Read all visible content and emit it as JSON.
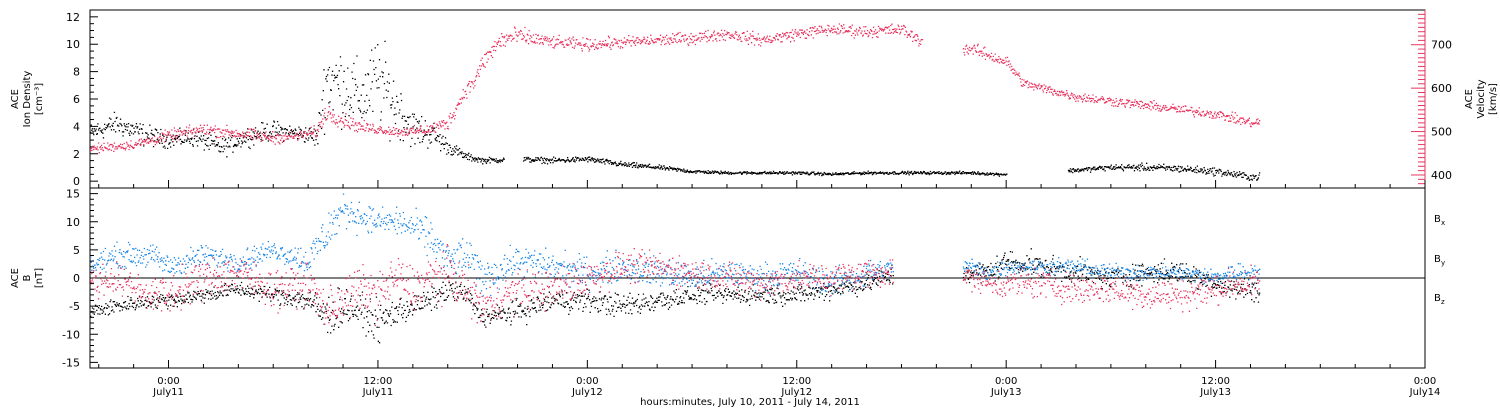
{
  "colors": {
    "black": "#000000",
    "pink": "#e8355f",
    "blue": "#1a86e6"
  },
  "xaxis": {
    "range_hours": [
      -4.5,
      72
    ],
    "ticks": [
      {
        "hour": 0,
        "time": "0:00",
        "date": "July11"
      },
      {
        "hour": 12,
        "time": "12:00",
        "date": "July11"
      },
      {
        "hour": 24,
        "time": "0:00",
        "date": "July12"
      },
      {
        "hour": 36,
        "time": "12:00",
        "date": "July12"
      },
      {
        "hour": 48,
        "time": "0:00",
        "date": "July13"
      },
      {
        "hour": 60,
        "time": "12:00",
        "date": "July13"
      },
      {
        "hour": 72,
        "time": "0:00",
        "date": "July14"
      }
    ],
    "title": "hours:minutes, July 10, 2011 - July 14, 2011"
  },
  "chart_data": [
    {
      "type": "scatter",
      "panel": "top",
      "ylabel_left": [
        "ACE",
        "Ion Density",
        "[cm⁻³]"
      ],
      "ylabel_right": [
        "ACE",
        "Velocity",
        "[km/s]"
      ],
      "ylim_left": [
        -0.5,
        12.5
      ],
      "ylim_right": [
        370,
        780
      ],
      "yticks_left": [
        0,
        2,
        4,
        6,
        8,
        10,
        12
      ],
      "yticks_right": [
        400,
        500,
        600,
        700
      ],
      "series": [
        {
          "axis": "left",
          "color_key": "black",
          "x": [
            -4.5,
            -3,
            -1.5,
            0,
            1.5,
            3,
            4.5,
            6,
            7.5,
            8.5,
            9,
            10,
            11,
            12,
            13,
            14,
            15,
            16,
            17,
            18,
            20,
            22,
            24,
            26,
            28,
            30,
            32,
            34,
            36,
            38,
            40,
            42,
            44,
            46,
            47.5,
            48,
            50,
            52,
            54,
            56,
            58,
            60,
            61,
            62
          ],
          "y": [
            3.5,
            4.2,
            3.4,
            3.0,
            3.2,
            2.4,
            3.3,
            3.7,
            3.5,
            3.2,
            7.5,
            7.0,
            6.0,
            7.5,
            5.5,
            3.8,
            3.5,
            2.5,
            1.8,
            1.5,
            1.6,
            1.5,
            1.6,
            1.2,
            1.0,
            0.7,
            0.6,
            0.6,
            0.6,
            0.5,
            0.6,
            0.6,
            0.6,
            0.6,
            0.5,
            0.5,
            0.6,
            0.8,
            1.0,
            1.0,
            0.9,
            0.7,
            0.5,
            0.3
          ],
          "jitter": [
            0.5,
            0.6,
            0.6,
            0.4,
            0.5,
            0.5,
            0.5,
            0.5,
            0.4,
            0.6,
            2.2,
            2.0,
            1.8,
            2.4,
            1.6,
            1.0,
            0.8,
            0.4,
            0.2,
            0.15,
            0.15,
            0.15,
            0.15,
            0.15,
            0.12,
            0.1,
            0.08,
            0.08,
            0.08,
            0.08,
            0.08,
            0.08,
            0.08,
            0.08,
            0.08,
            0.08,
            0.1,
            0.12,
            0.15,
            0.2,
            0.2,
            0.2,
            0.2,
            0.2
          ],
          "gaps": [
            [
              19.2,
              20.3
            ],
            [
              48.0,
              51.5
            ],
            [
              62.5,
              73
            ]
          ]
        },
        {
          "axis": "right",
          "color_key": "pink",
          "x": [
            -4.5,
            -2,
            0,
            2,
            4,
            6,
            7.5,
            8.5,
            9,
            10,
            11,
            12,
            13,
            14,
            15,
            16,
            17,
            17.5,
            18,
            19,
            20,
            22,
            24,
            26,
            28,
            30,
            32,
            34,
            36,
            38,
            40,
            42,
            43,
            45,
            46,
            47,
            48,
            49,
            50,
            52,
            54,
            56,
            58,
            60,
            61,
            62
          ],
          "y": [
            460,
            470,
            490,
            505,
            495,
            485,
            490,
            500,
            545,
            525,
            510,
            505,
            500,
            500,
            505,
            520,
            595,
            615,
            660,
            710,
            720,
            705,
            700,
            705,
            710,
            715,
            725,
            710,
            725,
            735,
            730,
            735,
            710,
            690,
            690,
            675,
            660,
            610,
            600,
            580,
            570,
            560,
            550,
            540,
            530,
            520
          ],
          "jitter": [
            8,
            8,
            10,
            10,
            10,
            10,
            8,
            10,
            15,
            12,
            10,
            8,
            8,
            8,
            10,
            12,
            12,
            15,
            15,
            18,
            15,
            10,
            10,
            10,
            10,
            10,
            10,
            10,
            10,
            10,
            10,
            10,
            10,
            10,
            10,
            10,
            10,
            8,
            8,
            8,
            8,
            8,
            8,
            8,
            8,
            8
          ],
          "gaps": [
            [
              43.2,
              45.5
            ],
            [
              62.5,
              73
            ]
          ]
        }
      ]
    },
    {
      "type": "scatter",
      "panel": "bottom",
      "ylabel_left": [
        "ACE",
        "B",
        "[nT]"
      ],
      "ylim": [
        -16,
        16
      ],
      "yticks": [
        -15,
        -10,
        -5,
        0,
        5,
        10,
        15
      ],
      "legend": [
        {
          "label": "B",
          "sub": "x",
          "color_key": "black"
        },
        {
          "label": "B",
          "sub": "y",
          "color_key": "blue"
        },
        {
          "label": "B",
          "sub": "z",
          "color_key": "pink"
        }
      ],
      "series": [
        {
          "name": "Bx",
          "color_key": "black",
          "x": [
            -4.5,
            -3,
            -1,
            0,
            2,
            4,
            6,
            8,
            9,
            10,
            11,
            12,
            13,
            14,
            15,
            16,
            17,
            18,
            20,
            22,
            24,
            26,
            28,
            30,
            32,
            34,
            36,
            38,
            40,
            42,
            44,
            46,
            47,
            48,
            50,
            52,
            54,
            56,
            58,
            60,
            61,
            62
          ],
          "y": [
            -6,
            -5,
            -4,
            -4,
            -3,
            -2,
            -3,
            -4,
            -7,
            -5,
            -6,
            -8,
            -6,
            -5,
            -4,
            -2,
            -3,
            -7,
            -6,
            -4,
            -4,
            -5,
            -4,
            -3,
            -3,
            -3,
            -3,
            -2,
            -1,
            1,
            1,
            1,
            1,
            3,
            2,
            1,
            0,
            1,
            1,
            -1,
            -2,
            -2
          ],
          "jitter": [
            1,
            1,
            1,
            1,
            1,
            1,
            1,
            1.5,
            3,
            2.5,
            2,
            2.5,
            2,
            1.5,
            1.5,
            1.5,
            1.5,
            1.2,
            1.5,
            1.5,
            1.5,
            1.5,
            1.5,
            1.2,
            1.2,
            1.2,
            1.2,
            1.2,
            1.2,
            1.5,
            1.5,
            1.5,
            1.5,
            1.5,
            1.5,
            1.5,
            1.5,
            1.5,
            1.5,
            1.5,
            1.5,
            1.5
          ],
          "gaps": [
            [
              41.5,
              45.5
            ],
            [
              62.5,
              73
            ]
          ]
        },
        {
          "name": "By",
          "color_key": "blue",
          "x": [
            -4.5,
            -3,
            -1,
            0,
            2,
            4,
            6,
            8,
            9,
            10,
            11,
            12,
            13,
            14,
            15,
            16,
            17,
            18,
            20,
            22,
            24,
            26,
            28,
            30,
            32,
            34,
            36,
            38,
            40,
            42,
            44,
            46,
            47,
            48,
            50,
            52,
            54,
            56,
            58,
            60,
            61,
            62
          ],
          "y": [
            2,
            4,
            4,
            2,
            4,
            3,
            5,
            3,
            8,
            12,
            11,
            10,
            10,
            9,
            7,
            3,
            4,
            0,
            3,
            2,
            1,
            2,
            1,
            0,
            1,
            0,
            1,
            -1,
            1,
            2,
            2,
            2,
            1,
            2,
            2,
            2,
            1,
            1,
            1,
            0,
            1,
            1
          ],
          "jitter": [
            1.5,
            1.5,
            1.5,
            1.5,
            1.5,
            1.5,
            1.2,
            2,
            3,
            2,
            2,
            1.5,
            2,
            2,
            2.5,
            2,
            2.5,
            2.5,
            2,
            2,
            2,
            2,
            2,
            1.8,
            1.8,
            1.8,
            1.8,
            1.8,
            1.8,
            1,
            1,
            1,
            1.2,
            1,
            1,
            1,
            1,
            1,
            1,
            1.2,
            1.2,
            1.2
          ],
          "gaps": [
            [
              41.5,
              45.5
            ],
            [
              62.5,
              73
            ]
          ]
        },
        {
          "name": "Bz",
          "color_key": "pink",
          "x": [
            -4.5,
            -3,
            -1,
            0,
            2,
            4,
            6,
            8,
            9,
            10,
            11,
            12,
            13,
            14,
            15,
            16,
            17,
            18,
            20,
            22,
            24,
            26,
            28,
            30,
            32,
            34,
            36,
            38,
            40,
            42,
            44,
            46,
            47,
            48,
            50,
            52,
            54,
            56,
            58,
            60,
            61,
            62
          ],
          "y": [
            -1,
            0,
            -3,
            -3,
            0,
            1,
            -2,
            -1,
            -6,
            -4,
            -2,
            -3,
            0,
            -2,
            0,
            1,
            -2,
            -5,
            -2,
            -2,
            0,
            2,
            2,
            1,
            0,
            -1,
            0,
            0,
            1,
            1,
            1,
            0,
            -1,
            -1,
            -1,
            -2,
            -2,
            -3,
            -3,
            -2,
            -1,
            -1
          ],
          "jitter": [
            2,
            2,
            2,
            2.5,
            2.5,
            2.5,
            2.5,
            2.5,
            3,
            3,
            3,
            3,
            3,
            3,
            3,
            3,
            3,
            2.5,
            2.5,
            2.5,
            2.5,
            2,
            2,
            2,
            2,
            2,
            2,
            2,
            2,
            1.5,
            1.5,
            1.5,
            1.5,
            2,
            2,
            2,
            2,
            2,
            2,
            2,
            2,
            2
          ],
          "gaps": [
            [
              41.5,
              45.5
            ],
            [
              62.5,
              73
            ]
          ]
        }
      ]
    }
  ]
}
